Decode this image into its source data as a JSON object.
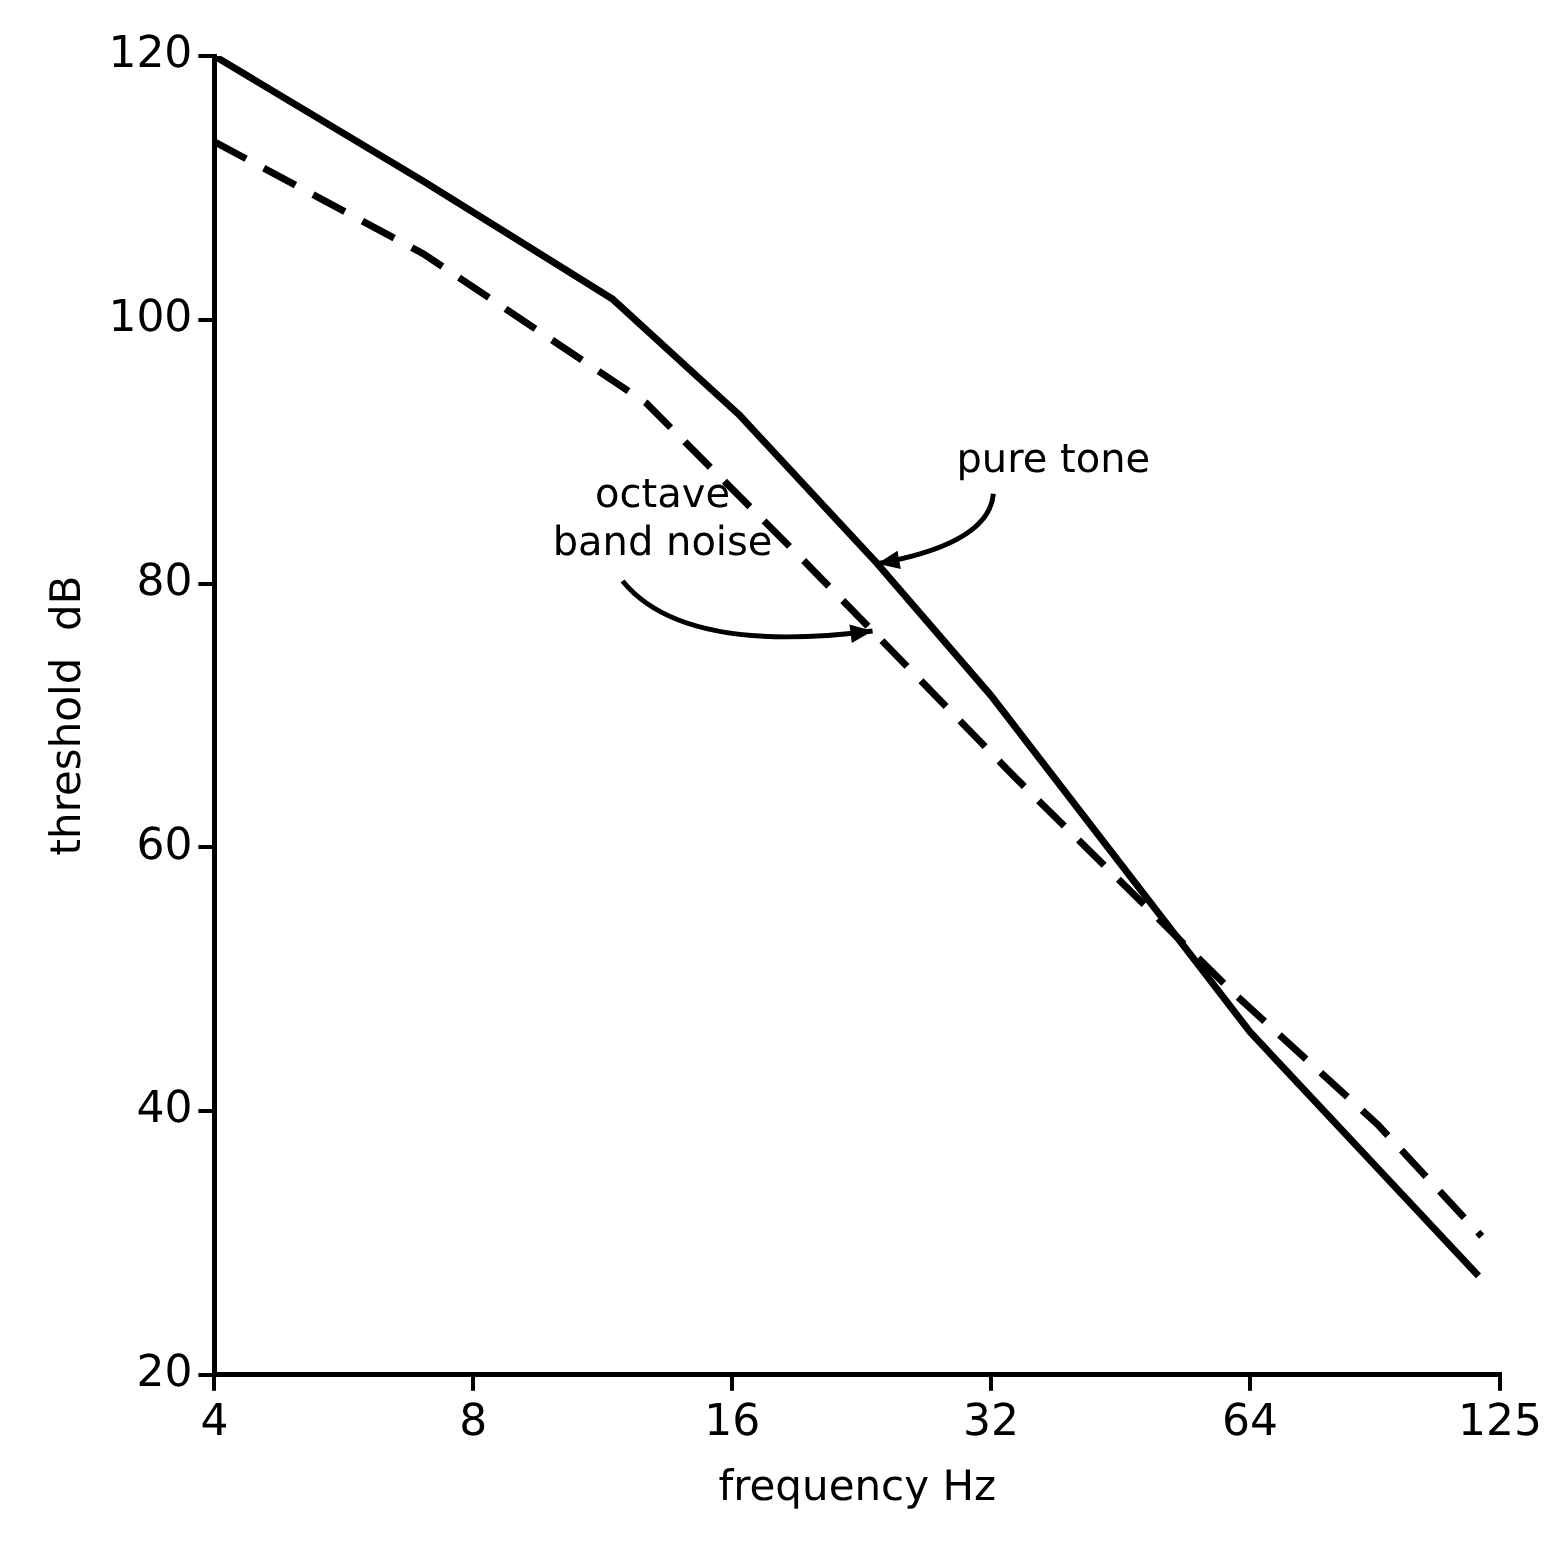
{
  "chart_data": {
    "type": "line",
    "xlabel": "frequency Hz",
    "ylabel": "threshold  dB",
    "log": "x",
    "xlim": [
      4,
      125
    ],
    "xticks": [
      4,
      8,
      16,
      32,
      64,
      125
    ],
    "ylim": [
      20,
      120
    ],
    "yticks": [
      20,
      40,
      60,
      80,
      100,
      120
    ],
    "grid": false,
    "legend": false,
    "marker": "none",
    "series": [
      {
        "color": "#000000",
        "line_style": "solid",
        "x": [
          4,
          7,
          11.6,
          16.3,
          23.6,
          32,
          64,
          118
        ],
        "values": [
          120,
          110.5,
          101.6,
          92.8,
          81.5,
          71.5,
          46,
          27.5
        ]
      },
      {
        "color": "#000000",
        "line_style": "dashed",
        "x": [
          4,
          7,
          12.7,
          19.2,
          23.3,
          34,
          61.6,
          90,
          119
        ],
        "values": [
          113.5,
          105,
          93.7,
          82,
          76.4,
          65.4,
          48.8,
          39,
          30.5
        ]
      }
    ],
    "annotations": [
      {
        "text": "pure tone",
        "x": 23.6,
        "y": 81.5
      },
      {
        "text": "octave band noise",
        "x": 23.3,
        "y": 76.4
      }
    ]
  }
}
